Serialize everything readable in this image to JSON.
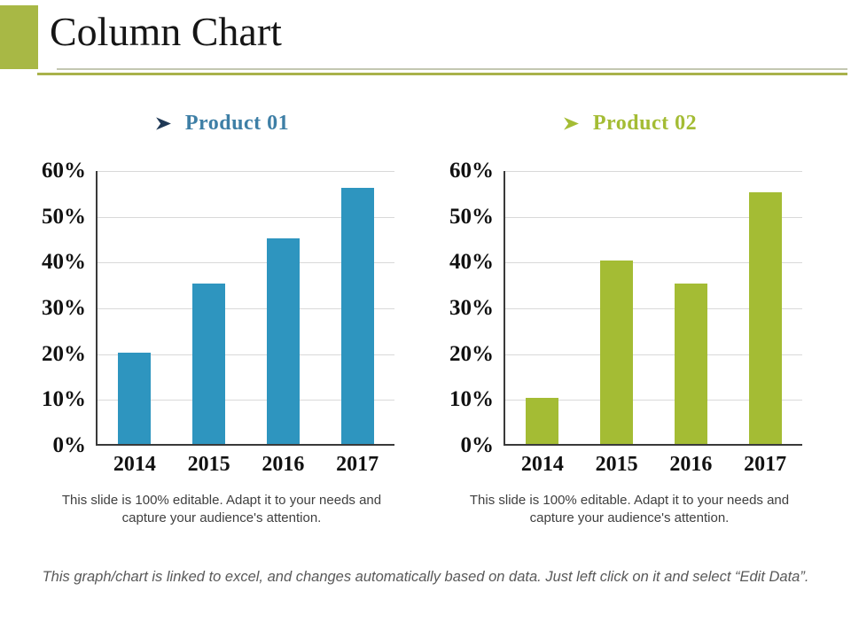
{
  "slide": {
    "title": "Column Chart",
    "footer_note": "This graph/chart is linked to excel, and changes automatically based on data. Just left click on it and select “Edit Data”."
  },
  "colors": {
    "accent_block_green": "#A8B845",
    "rule_gray": "#C3C7B2",
    "rule_olive": "#A9B24B",
    "grid_gray": "#D9D9D9",
    "axis_dark": "#3A3A3A",
    "caption_text": "#3F3F3F",
    "footer_text": "#595959",
    "product01_blue": "#2E95BF",
    "product02_olive": "#A4BC34"
  },
  "chart_data": [
    {
      "type": "bar",
      "title": "Product 01",
      "bullet_icon": "arrowhead-right",
      "title_color": "#3E7FA6",
      "bullet_color": "#1F3855",
      "bar_color": "#2E95BF",
      "categories": [
        "2014",
        "2015",
        "2016",
        "2017"
      ],
      "values": [
        20,
        35,
        45,
        56
      ],
      "value_unit": "%",
      "ylim": [
        0,
        60
      ],
      "ytick_step": 10,
      "yticks_top_to_bottom": [
        "60%",
        "50%",
        "40%",
        "30%",
        "20%",
        "10%",
        "0%"
      ],
      "grid": true,
      "legend": "none",
      "caption_lines": [
        "This slide is 100% editable. Adapt it to your needs and",
        "capture your audience's attention."
      ]
    },
    {
      "type": "bar",
      "title": "Product 02",
      "bullet_icon": "arrowhead-right",
      "title_color": "#A4BC34",
      "bullet_color": "#A4BC34",
      "bar_color": "#A4BC34",
      "categories": [
        "2014",
        "2015",
        "2016",
        "2017"
      ],
      "values": [
        10,
        40,
        35,
        55
      ],
      "value_unit": "%",
      "ylim": [
        0,
        60
      ],
      "ytick_step": 10,
      "yticks_top_to_bottom": [
        "60%",
        "50%",
        "40%",
        "30%",
        "20%",
        "10%",
        "0%"
      ],
      "grid": true,
      "legend": "none",
      "caption_lines": [
        "This slide is 100% editable. Adapt it to your needs and",
        "capture your audience's attention."
      ]
    }
  ]
}
